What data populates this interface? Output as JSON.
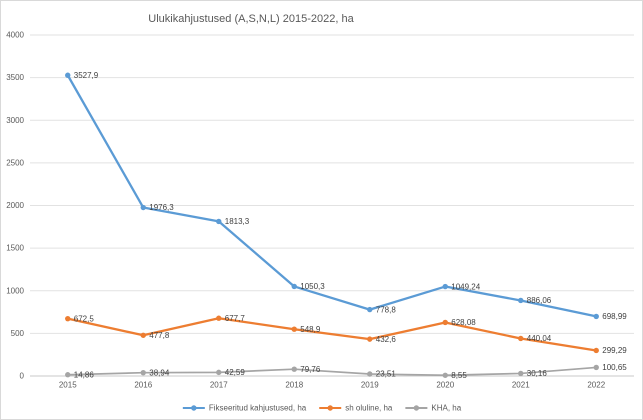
{
  "chart_data": {
    "type": "line",
    "title": "Ulukikahjustused (A,S,N,L) 2015-2022, ha",
    "categories": [
      "2015",
      "2016",
      "2017",
      "2018",
      "2019",
      "2020",
      "2021",
      "2022"
    ],
    "series": [
      {
        "name": "Fikseeritud kahjustused, ha",
        "color": "#5B9BD5",
        "values": [
          3527.9,
          1976.3,
          1813.3,
          1050.3,
          778.8,
          1049.24,
          886.06,
          698.99
        ],
        "point_labels": [
          "3527,9",
          "1976,3",
          "1813,3",
          "1050,3",
          "778,8",
          "1049,24",
          "886,06",
          "698,99"
        ]
      },
      {
        "name": "sh oluline, ha",
        "color": "#ED7D31",
        "values": [
          672.5,
          477.8,
          677.7,
          548.9,
          432.6,
          628.08,
          440.04,
          299.29
        ],
        "point_labels": [
          "672,5",
          "477,8",
          "677,7",
          "548,9",
          "432,6",
          "628,08",
          "440,04",
          "299,29"
        ]
      },
      {
        "name": "KHA, ha",
        "color": "#A5A5A5",
        "values": [
          14.86,
          38.94,
          42.59,
          79.76,
          23.51,
          8.55,
          30.16,
          100.65
        ],
        "point_labels": [
          "14,86",
          "38,94",
          "42,59",
          "79,76",
          "23,51",
          "8,55",
          "30,16",
          "100,65"
        ]
      }
    ],
    "y_axis": {
      "min": 0,
      "max": 4000,
      "step": 500,
      "tick_labels": [
        "0",
        "500",
        "1000",
        "1500",
        "2000",
        "2500",
        "3000",
        "3500",
        "4000"
      ]
    },
    "legend": {
      "position": "bottom",
      "entries": [
        "Fikseeritud kahjustused, ha",
        "sh oluline, ha",
        "KHA, ha"
      ]
    },
    "grid": true,
    "ylim": [
      0,
      4000
    ]
  }
}
